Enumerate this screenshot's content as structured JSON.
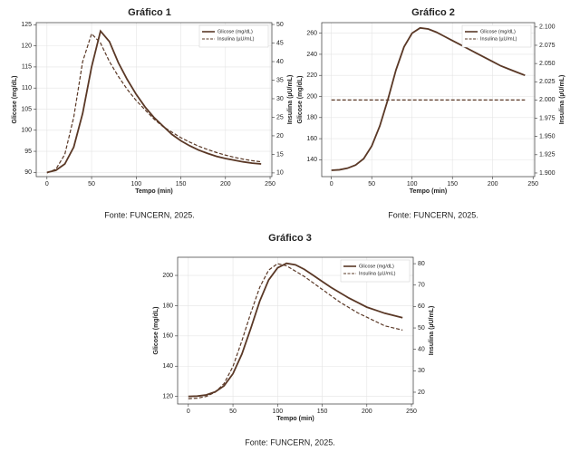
{
  "chart_data": [
    {
      "type": "line",
      "title": "Gráfico 1",
      "source": "Fonte: FUNCERN, 2025.",
      "xlabel": "Tempo (min)",
      "ylabel": "Glicose (mg/dL)",
      "y2label": "Insulina (µU/mL)",
      "x": [
        0,
        10,
        20,
        30,
        40,
        50,
        60,
        70,
        80,
        90,
        100,
        110,
        120,
        130,
        140,
        150,
        160,
        170,
        180,
        190,
        200,
        210,
        220,
        230,
        240
      ],
      "xlim": [
        -12,
        252
      ],
      "xticks": [
        0,
        50,
        100,
        150,
        200,
        250
      ],
      "ylim": [
        89,
        125.5
      ],
      "yticks": [
        90,
        95,
        100,
        105,
        110,
        115,
        120,
        125
      ],
      "y2lim": [
        9,
        50.5
      ],
      "y2ticks": [
        10,
        15,
        20,
        25,
        30,
        35,
        40,
        45,
        50
      ],
      "grid": true,
      "legend": "upper right",
      "series": [
        {
          "name": "Glicose (mg/dL)",
          "color": "#5a3826",
          "style": "solid",
          "values": [
            90,
            90.5,
            92,
            96,
            104,
            115,
            123.5,
            121,
            116,
            112,
            108.5,
            105.5,
            103,
            101,
            99,
            97.5,
            96.3,
            95.3,
            94.5,
            93.8,
            93.3,
            92.9,
            92.5,
            92.2,
            92
          ]
        },
        {
          "name": "Insulina (µU/mL)",
          "color": "#5a3826",
          "style": "dashed",
          "axis": "y2",
          "values": [
            10,
            11,
            15,
            25,
            40,
            47.5,
            45,
            40,
            36,
            32.5,
            29.5,
            27,
            24.5,
            22.5,
            21,
            19.5,
            18.3,
            17.2,
            16.3,
            15.5,
            14.8,
            14.2,
            13.7,
            13.3,
            13
          ]
        }
      ]
    },
    {
      "type": "line",
      "title": "Gráfico 2",
      "source": "Fonte: FUNCERN, 2025.",
      "xlabel": "Tempo (min)",
      "ylabel": "Glicose (mg/dL)",
      "y2label": "Insulina (µU/mL)",
      "x": [
        0,
        10,
        20,
        30,
        40,
        50,
        60,
        70,
        80,
        90,
        100,
        110,
        120,
        130,
        140,
        150,
        160,
        170,
        180,
        190,
        200,
        210,
        220,
        230,
        240
      ],
      "xlim": [
        -12,
        252
      ],
      "xticks": [
        0,
        50,
        100,
        150,
        200,
        250
      ],
      "ylim": [
        124,
        270
      ],
      "yticks": [
        140,
        160,
        180,
        200,
        220,
        240,
        260
      ],
      "y2lim": [
        1.895,
        2.106
      ],
      "y2ticks": [
        {
          "value": 1.9,
          "label": "1.900"
        },
        {
          "value": 1.925,
          "label": "1.925"
        },
        {
          "value": 1.95,
          "label": "1.950"
        },
        {
          "value": 1.975,
          "label": "1.975"
        },
        {
          "value": 2.0,
          "label": "2.000"
        },
        {
          "value": 2.025,
          "label": "2.025"
        },
        {
          "value": 2.05,
          "label": "2.050"
        },
        {
          "value": 2.075,
          "label": "2.075"
        },
        {
          "value": 2.1,
          "label": "2.100"
        }
      ],
      "grid": true,
      "legend": "upper right",
      "series": [
        {
          "name": "Glicose (mg/dL)",
          "color": "#5a3826",
          "style": "solid",
          "values": [
            130,
            130.5,
            132,
            135,
            141,
            153,
            172,
            197,
            225,
            247,
            260,
            265,
            264,
            261,
            257,
            253,
            249,
            245,
            241,
            237,
            233,
            229,
            226,
            223,
            220
          ]
        },
        {
          "name": "Insulina (µU/mL)",
          "color": "#5a3826",
          "style": "dashed",
          "axis": "y2",
          "values": [
            2,
            2,
            2,
            2,
            2,
            2,
            2,
            2,
            2,
            2,
            2,
            2,
            2,
            2,
            2,
            2,
            2,
            2,
            2,
            2,
            2,
            2,
            2,
            2,
            2
          ]
        }
      ]
    },
    {
      "type": "line",
      "title": "Gráfico 3",
      "source": "Fonte: FUNCERN, 2025.",
      "xlabel": "Tempo (min)",
      "ylabel": "Glicose (mg/dL)",
      "y2label": "Insulina (µU/mL)",
      "x": [
        0,
        10,
        20,
        30,
        40,
        50,
        60,
        70,
        80,
        90,
        100,
        110,
        120,
        130,
        140,
        150,
        160,
        170,
        180,
        190,
        200,
        210,
        220,
        230,
        240
      ],
      "xlim": [
        -12,
        252
      ],
      "xticks": [
        0,
        50,
        100,
        150,
        200,
        250
      ],
      "ylim": [
        115,
        212
      ],
      "yticks": [
        120,
        140,
        160,
        180,
        200
      ],
      "y2lim": [
        14.5,
        83
      ],
      "y2ticks": [
        20,
        30,
        40,
        50,
        60,
        70,
        80
      ],
      "grid": true,
      "legend": "upper right",
      "series": [
        {
          "name": "Glicose (mg/dL)",
          "color": "#5a3826",
          "style": "solid",
          "values": [
            120,
            120.2,
            121,
            123,
            127,
            135,
            148,
            165,
            183,
            197,
            205,
            208,
            207,
            204,
            200,
            196,
            192,
            188.5,
            185,
            182,
            179,
            177,
            175,
            173.5,
            172
          ]
        },
        {
          "name": "Insulina (µU/mL)",
          "color": "#5a3826",
          "style": "dashed",
          "axis": "y2",
          "values": [
            17,
            17.2,
            18,
            20,
            24,
            32,
            44,
            57,
            69,
            77,
            80,
            79,
            76.5,
            74,
            71,
            68,
            65,
            62,
            59.5,
            57,
            55,
            53,
            51,
            50,
            49
          ]
        }
      ]
    }
  ]
}
